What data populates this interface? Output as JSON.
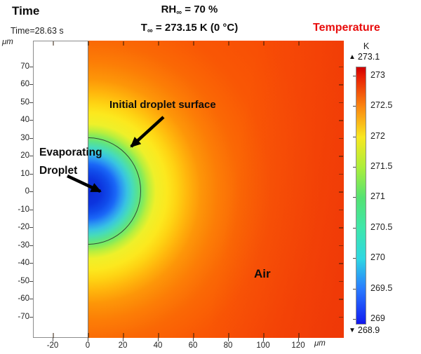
{
  "header": {
    "time_label": "Time",
    "time_value": "Time=28.63 s",
    "rh": {
      "base": "RH",
      "sub": "∞",
      "rest": " = 70 %"
    },
    "t": {
      "base": "T",
      "sub": "∞",
      "rest": " = 273.15 K (0 °C)"
    },
    "legend_title": "Temperature"
  },
  "plot": {
    "y_axis_unit": "μm",
    "x_axis_unit": "μm",
    "y_ticks": [
      70,
      60,
      50,
      40,
      30,
      20,
      10,
      0,
      -10,
      -20,
      -30,
      -40,
      -50,
      -60,
      -70
    ],
    "x_ticks": [
      -20,
      0,
      20,
      40,
      60,
      80,
      100,
      120
    ],
    "annotations": {
      "initial_surface": "Initial droplet surface",
      "droplet_line1": "Evaporating",
      "droplet_line2": "Droplet",
      "air": "Air"
    }
  },
  "colorbar": {
    "unit": "K",
    "max_marker": "▲",
    "max_label": "273.1",
    "min_marker": "▼",
    "min_label": "268.9",
    "tick_values": [
      273,
      272.5,
      272,
      271.5,
      271,
      270.5,
      270,
      269.5,
      269
    ]
  },
  "colors": {
    "legend_title_red": "#e80c0c",
    "far_field_orange_red": "#f84d05",
    "droplet_core_blue": "#0b2bd4",
    "annotation_black": "#0c0c0c"
  },
  "chart_data": {
    "type": "heatmap",
    "title": "Temperature",
    "xlabel": "μm",
    "ylabel": "μm",
    "x_ticks": [
      -20,
      0,
      20,
      40,
      60,
      80,
      100,
      120
    ],
    "y_ticks": [
      70,
      60,
      50,
      40,
      30,
      20,
      10,
      0,
      -10,
      -20,
      -30,
      -40,
      -50,
      -60,
      -70
    ],
    "xlim": [
      -31,
      146
    ],
    "ylim": [
      -84,
      84
    ],
    "grid": false,
    "legend_position": "right colorbar",
    "colorbar": {
      "unit": "K",
      "min": 268.9,
      "max": 273.1,
      "tick_values": [
        273,
        272.5,
        272,
        271.5,
        271,
        270.5,
        270,
        269.5,
        269
      ],
      "colormap": "rainbow (blue→cyan→green→yellow→orange→red)"
    },
    "time_s": 28.63,
    "conditions": {
      "RH_infinity_percent": 70,
      "T_infinity_K": 273.15,
      "T_infinity_C": 0
    },
    "features": {
      "initial_droplet_radius_um": 30,
      "droplet_center_um": [
        0,
        0
      ],
      "colored_domain_x_um": [
        0,
        146
      ],
      "min_temperature_K": 268.9,
      "max_temperature_K": 273.1
    },
    "radial_temperature_profile": [
      {
        "r_um": 0,
        "T_K": 269.0
      },
      {
        "r_um": 10,
        "T_K": 269.2
      },
      {
        "r_um": 20,
        "T_K": 270.3
      },
      {
        "r_um": 30,
        "T_K": 271.6
      },
      {
        "r_um": 40,
        "T_K": 272.2
      },
      {
        "r_um": 60,
        "T_K": 272.7
      },
      {
        "r_um": 90,
        "T_K": 272.9
      },
      {
        "r_um": 140,
        "T_K": 273.1
      }
    ]
  }
}
